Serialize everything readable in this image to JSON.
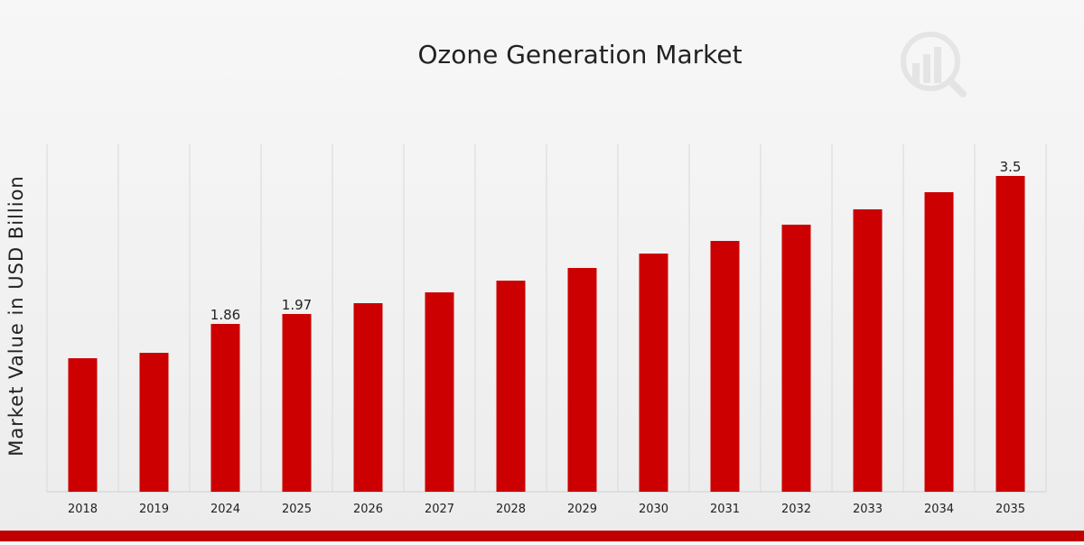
{
  "chart_data": {
    "type": "bar",
    "title": "Ozone Generation Market",
    "ylabel": "Market Value in USD Billion",
    "xlabel": "",
    "categories": [
      "2018",
      "2019",
      "2024",
      "2025",
      "2026",
      "2027",
      "2028",
      "2029",
      "2030",
      "2031",
      "2032",
      "2033",
      "2034",
      "2035"
    ],
    "values": [
      1.48,
      1.54,
      1.86,
      1.97,
      2.09,
      2.21,
      2.34,
      2.48,
      2.64,
      2.78,
      2.96,
      3.13,
      3.32,
      3.5
    ],
    "data_labels": [
      "",
      "",
      "1.86",
      "1.97",
      "",
      "",
      "",
      "",
      "",
      "",
      "",
      "",
      "",
      "3.5"
    ],
    "ylim": [
      0,
      3.5
    ],
    "bar_color": "#cc0000",
    "grid": "vertical",
    "legend": "none"
  },
  "colors": {
    "bar": "#cc0000",
    "accent_strip": "#c00000",
    "gridline": "#d9d9d9",
    "text": "#222222"
  },
  "watermark": {
    "icon": "market-research-logo-icon"
  }
}
